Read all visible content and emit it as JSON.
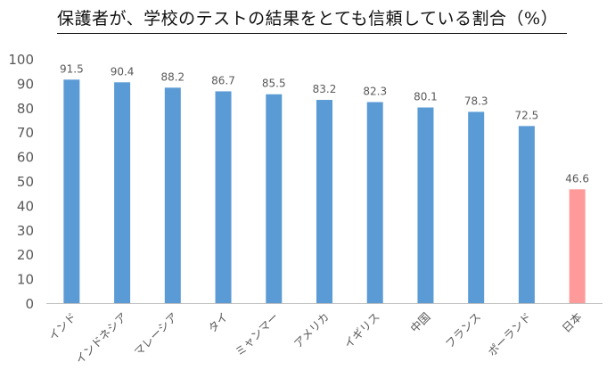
{
  "chart_data": {
    "type": "bar",
    "title": "保護者が、学校のテストの結果をとても信頼している割合（%）",
    "categories": [
      "インド",
      "インドネシア",
      "マレーシア",
      "タイ",
      "ミャンマー",
      "アメリカ",
      "イギリス",
      "中国",
      "フランス",
      "ポーランド",
      "日本"
    ],
    "values": [
      91.5,
      90.4,
      88.2,
      86.7,
      85.5,
      83.2,
      82.3,
      80.1,
      78.3,
      72.5,
      46.6
    ],
    "value_labels": [
      "91.5",
      "90.4",
      "88.2",
      "86.7",
      "85.5",
      "83.2",
      "82.3",
      "80.1",
      "78.3",
      "72.5",
      "46.6"
    ],
    "ylim": [
      0,
      100
    ],
    "yticks": [
      0,
      10,
      20,
      30,
      40,
      50,
      60,
      70,
      80,
      90,
      100
    ],
    "grid": false,
    "colors": {
      "default_bar": "#5b9bd5",
      "highlight_bar": "#ff9a9a",
      "highlight_category": "日本",
      "axis": "#bfbfbf",
      "text": "#595959"
    }
  }
}
